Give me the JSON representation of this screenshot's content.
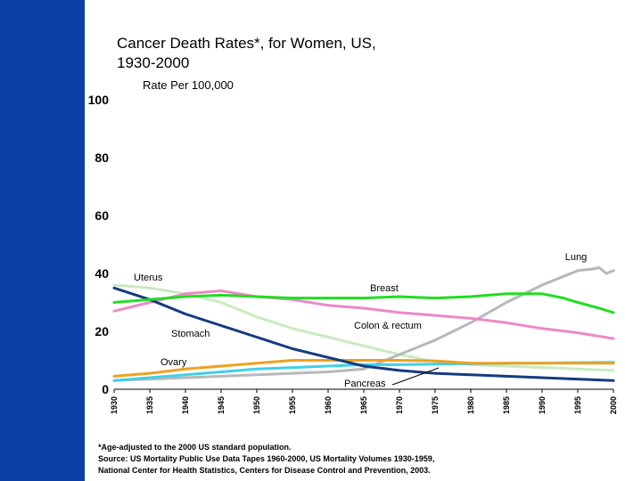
{
  "title": "Cancer Death Rates*, for Women, US,\n1930-2000",
  "colors": {
    "sidebar": "#0b3fa6"
  },
  "chart_data": {
    "type": "line",
    "title": "Cancer Death Rates*, for Women, US, 1930-2000",
    "ylabel": "Rate Per 100,000",
    "xlabel": "",
    "xlim": [
      1930,
      2000
    ],
    "ylim": [
      0,
      100
    ],
    "yticks": [
      "0",
      "20",
      "40",
      "60",
      "80",
      "100"
    ],
    "xticks": [
      "1930",
      "1935",
      "1940",
      "1945",
      "1950",
      "1955",
      "1960",
      "1965",
      "1970",
      "1975",
      "1980",
      "1985",
      "1990",
      "1995",
      "2000"
    ],
    "grid": false,
    "legend": "none (series labelled directly)",
    "series": [
      {
        "name": "Lung",
        "color": "#b8b8b8",
        "x": [
          1930,
          1935,
          1940,
          1945,
          1950,
          1955,
          1960,
          1965,
          1968,
          1970,
          1975,
          1980,
          1985,
          1990,
          1993,
          1995,
          1997,
          1998,
          1999,
          2000
        ],
        "y": [
          3,
          3.5,
          4,
          4.5,
          5,
          5.5,
          6,
          7,
          10,
          12,
          17,
          23,
          30,
          36,
          39,
          41,
          41.5,
          42,
          40,
          41
        ]
      },
      {
        "name": "Uterus",
        "color": "#c8ebc0",
        "x": [
          1930,
          1935,
          1940,
          1945,
          1950,
          1955,
          1960,
          1965,
          1970,
          1975,
          1980,
          1985,
          1990,
          1995,
          2000
        ],
        "y": [
          36,
          35,
          33,
          30,
          25,
          21,
          18,
          15,
          12,
          9.5,
          8.5,
          8,
          7.5,
          7,
          6.5
        ]
      },
      {
        "name": "Breast",
        "color": "#22dd22",
        "x": [
          1930,
          1935,
          1940,
          1945,
          1950,
          1955,
          1960,
          1965,
          1970,
          1975,
          1980,
          1985,
          1990,
          1993,
          1995,
          1998,
          2000
        ],
        "y": [
          30,
          31,
          32,
          32.5,
          32,
          31.5,
          31.5,
          31.5,
          32,
          31.5,
          32,
          33,
          33,
          31.5,
          30,
          28,
          26.5
        ]
      },
      {
        "name": "Colon & rectum",
        "color": "#ee88c8",
        "x": [
          1930,
          1935,
          1940,
          1945,
          1950,
          1955,
          1960,
          1965,
          1970,
          1975,
          1980,
          1985,
          1990,
          1995,
          2000
        ],
        "y": [
          27,
          30,
          33,
          34,
          32,
          31,
          29,
          28,
          26.5,
          25.5,
          24.5,
          23,
          21,
          19.5,
          17.5
        ]
      },
      {
        "name": "Stomach",
        "color": "#163a80",
        "x": [
          1930,
          1935,
          1940,
          1945,
          1950,
          1955,
          1960,
          1965,
          1970,
          1975,
          1980,
          1985,
          1990,
          1995,
          2000
        ],
        "y": [
          35,
          31,
          26,
          22,
          18,
          14,
          11,
          8,
          6.5,
          5.5,
          5,
          4.5,
          4,
          3.5,
          3
        ]
      },
      {
        "name": "Ovary",
        "color": "#f0a020",
        "x": [
          1930,
          1935,
          1940,
          1945,
          1950,
          1955,
          1960,
          1965,
          1970,
          1975,
          1980,
          1985,
          1990,
          1995,
          2000
        ],
        "y": [
          4.5,
          5.5,
          7,
          8,
          9,
          10,
          10,
          10,
          10,
          9.8,
          9,
          9,
          9,
          9,
          9
        ]
      },
      {
        "name": "Pancreas",
        "color": "#40d0e8",
        "x": [
          1930,
          1935,
          1940,
          1945,
          1950,
          1955,
          1960,
          1965,
          1970,
          1975,
          1980,
          1985,
          1990,
          1995,
          2000
        ],
        "y": [
          3,
          4,
          5,
          6,
          7,
          7.5,
          8,
          8.5,
          8.5,
          8.7,
          8.8,
          9,
          9,
          9.2,
          9.3
        ]
      }
    ],
    "annotations": [
      {
        "text": "Lung"
      },
      {
        "text": "Uterus"
      },
      {
        "text": "Breast"
      },
      {
        "text": "Colon & rectum"
      },
      {
        "text": "Stomach"
      },
      {
        "text": "Ovary"
      },
      {
        "text": "Pancreas"
      }
    ]
  },
  "footnote": [
    "*Age-adjusted to the 2000 US standard population.",
    "Source: US Mortality Public Use Data Tapes 1960-2000, US Mortality Volumes 1930-1959,",
    "National Center for Health Statistics, Centers for Disease Control and Prevention, 2003."
  ]
}
